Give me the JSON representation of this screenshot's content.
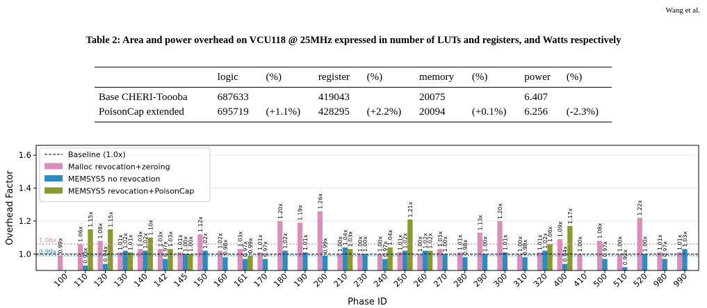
{
  "header": {
    "author": "Wang et al."
  },
  "caption": "Table 2: Area and power overhead on VCU118 @ 25MHz expressed in number of LUTs and registers, and Watts respectively",
  "table": {
    "headers": [
      "",
      "logic",
      "(%)",
      "register",
      "(%)",
      "memory",
      "(%)",
      "power",
      "(%)"
    ],
    "rows": [
      [
        "Base CHERI-Toooba",
        "687633",
        "",
        "419043",
        "",
        "20075",
        "",
        "6.407",
        ""
      ],
      [
        "PoisonCap extended",
        "695719",
        "(+1.1%)",
        "428295",
        "(+2.2%)",
        "20094",
        "(+0.1%)",
        "6.256",
        "(-2.3%)"
      ]
    ]
  },
  "chart_data": {
    "type": "bar",
    "xlabel": "Phase ID",
    "ylabel": "Overhead Factor",
    "ylim": [
      0.9,
      1.66
    ],
    "yticks": [
      1.0,
      1.2,
      1.4,
      1.6
    ],
    "ytick_labels": [
      "1.0",
      "1.2",
      "1.4",
      "1.6"
    ],
    "grid": true,
    "legend_position": "top-left",
    "categories": [
      "100",
      "110",
      "120",
      "130",
      "140",
      "142",
      "145",
      "150",
      "160",
      "161",
      "170",
      "180",
      "190",
      "200",
      "210",
      "230",
      "240",
      "250",
      "260",
      "270",
      "280",
      "290",
      "300",
      "310",
      "320",
      "400",
      "410",
      "500",
      "510",
      "520",
      "980",
      "990"
    ],
    "baseline": {
      "label": "Baseline (1.0x)",
      "value": 1.0,
      "color": "#000000"
    },
    "series": [
      {
        "name": "Malloc revocation+zeroing",
        "color": "#d98fba",
        "mean": 1.06,
        "mean_label": "1.06x",
        "values": [
          0.99,
          1.06,
          1.08,
          1.01,
          1.03,
          1.03,
          1.01,
          1.12,
          1.02,
          1.03,
          1.01,
          1.2,
          1.19,
          1.26,
          1.0,
          1.0,
          1.0,
          1.01,
          1.0,
          1.03,
          1.01,
          1.13,
          1.2,
          1.0,
          1.01,
          1.09,
          1.0,
          1.08,
          1.0,
          1.22,
          1.01,
          1.01
        ]
      },
      {
        "name": "MEMSYS5 no revocation",
        "color": "#2e8bc0",
        "mean": 0.99,
        "mean_label": "0.99x",
        "values": [
          null,
          0.93,
          0.94,
          1.02,
          1.02,
          0.97,
          1.0,
          1.02,
          0.98,
          0.97,
          0.97,
          1.02,
          1.01,
          0.99,
          1.04,
          1.0,
          0.97,
          1.02,
          1.02,
          1.0,
          0.98,
          1.0,
          1.01,
          0.98,
          1.02,
          0.94,
          null,
          0.97,
          0.92,
          1.0,
          0.97,
          1.03
        ]
      },
      {
        "name": "MEMSYS5 revocation+PoisonCap",
        "color": "#8b9a2e",
        "values": [
          null,
          1.15,
          1.15,
          1.01,
          1.1,
          1.03,
          1.0,
          null,
          null,
          0.99,
          null,
          null,
          null,
          null,
          1.03,
          null,
          1.04,
          1.21,
          1.02,
          null,
          null,
          null,
          null,
          null,
          1.06,
          1.17,
          null,
          null,
          null,
          null,
          null,
          null
        ]
      }
    ]
  }
}
